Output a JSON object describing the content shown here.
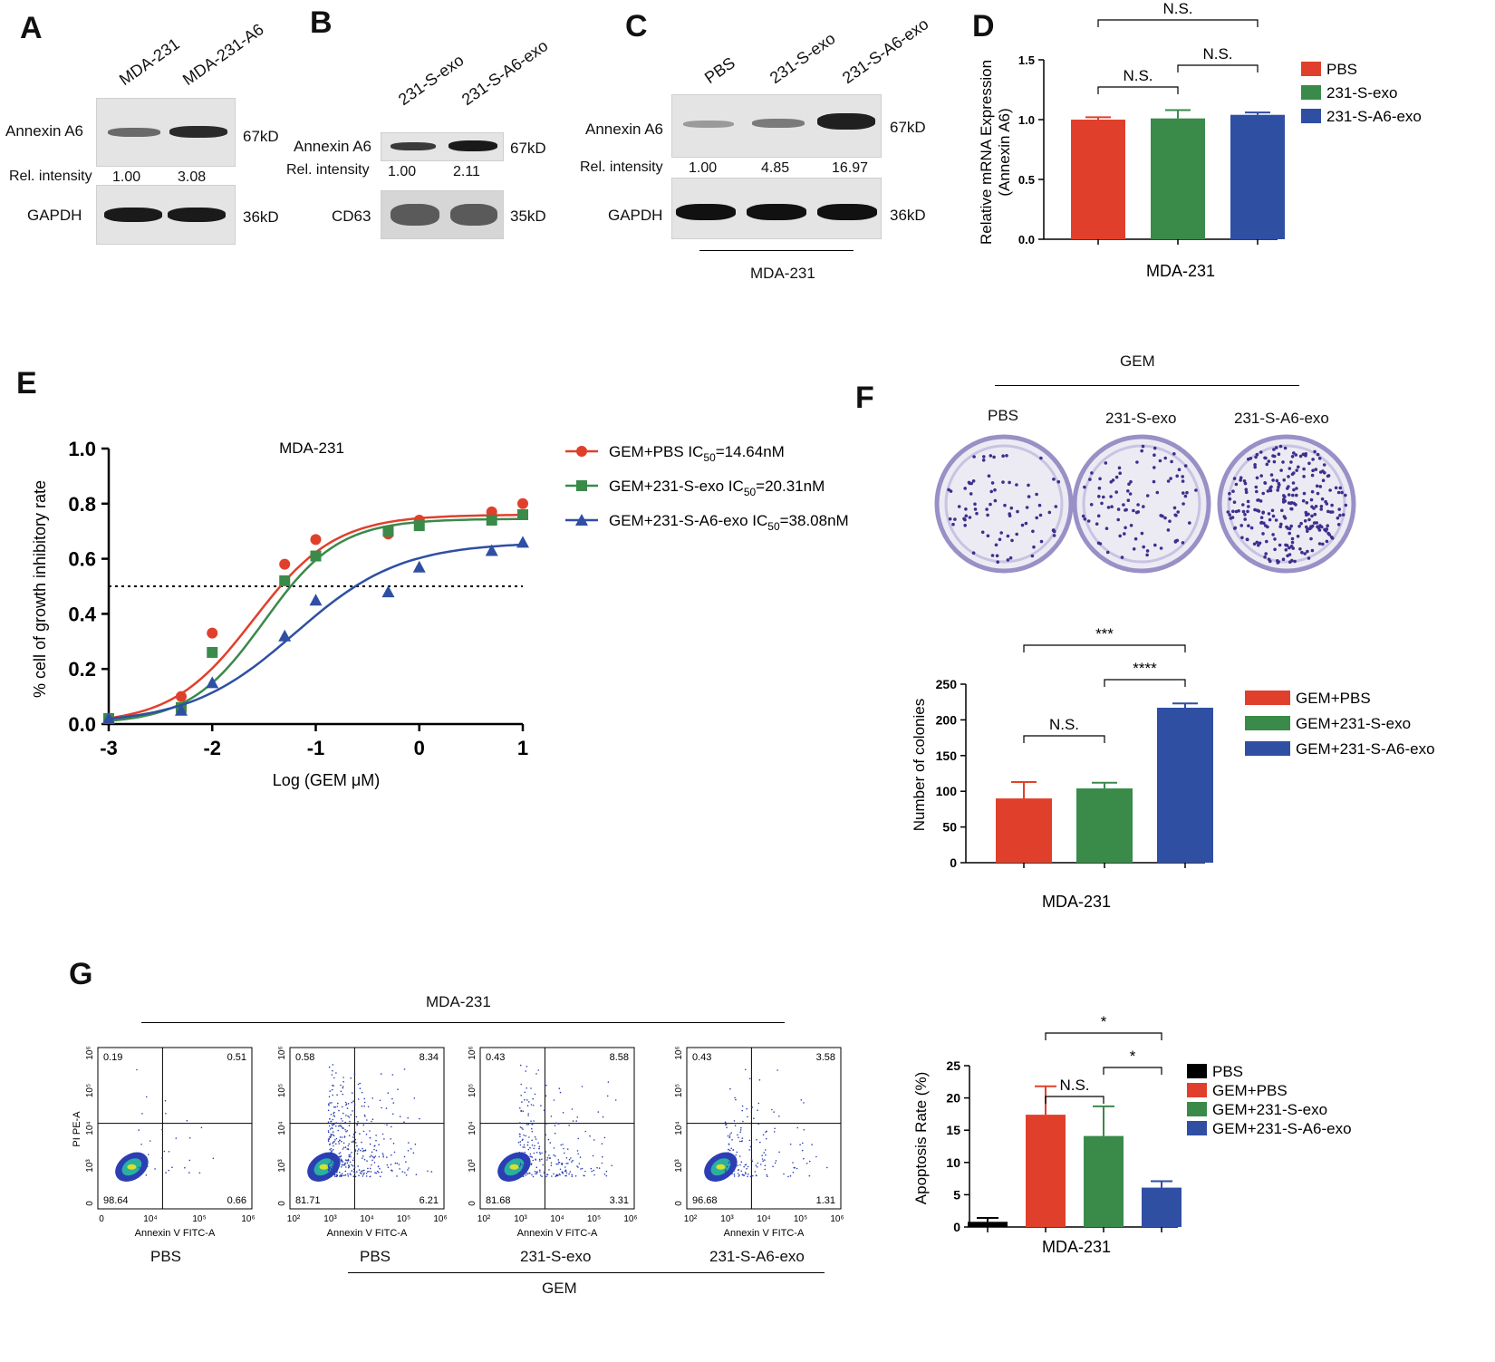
{
  "panels": {
    "A": "A",
    "B": "B",
    "C": "C",
    "D": "D",
    "E": "E",
    "F": "F",
    "G": "G"
  },
  "colors": {
    "red": "#e0402b",
    "green": "#3a8a4a",
    "blue": "#2f4fa3",
    "black": "#000000"
  },
  "panelA": {
    "lanes": [
      "MDA-231",
      "MDA-231-A6"
    ],
    "protein": "Annexin A6",
    "loading": "GAPDH",
    "size_top": "67kD",
    "size_bottom": "36kD",
    "rel_label": "Rel. intensity",
    "rel_values": [
      "1.00",
      "3.08"
    ]
  },
  "panelB": {
    "lanes": [
      "231-S-exo",
      "231-S-A6-exo"
    ],
    "protein": "Annexin A6",
    "loading": "CD63",
    "size_top": "67kD",
    "size_bottom": "35kD",
    "rel_label": "Rel. intensity",
    "rel_values": [
      "1.00",
      "2.11"
    ]
  },
  "panelC": {
    "lanes": [
      "PBS",
      "231-S-exo",
      "231-S-A6-exo"
    ],
    "protein": "Annexin A6",
    "loading": "GAPDH",
    "size_top": "67kD",
    "size_bottom": "36kD",
    "rel_label": "Rel. intensity",
    "rel_values": [
      "1.00",
      "4.85",
      "16.97"
    ],
    "cell_line": "MDA-231"
  },
  "panelF": {
    "treatment": "GEM",
    "dishes": [
      "PBS",
      "231-S-exo",
      "231-S-A6-exo"
    ]
  },
  "panelG": {
    "cell_line": "MDA-231",
    "treatment": "GEM",
    "x_axis": "Annexin V FITC-A",
    "y_axis": "PI PE-A",
    "plots": [
      {
        "label": "PBS",
        "q": [
          "0.19",
          "0.51",
          "98.64",
          "0.66"
        ]
      },
      {
        "label": "PBS",
        "q": [
          "0.58",
          "8.34",
          "81.71",
          "6.21"
        ]
      },
      {
        "label": "231-S-exo",
        "q": [
          "0.43",
          "8.58",
          "81.68",
          "3.31"
        ]
      },
      {
        "label": "231-S-A6-exo",
        "q": [
          "0.43",
          "3.58",
          "96.68",
          "1.31"
        ]
      }
    ],
    "x_ticks_first": [
      "0",
      "10⁴",
      "10⁵",
      "10⁶"
    ],
    "x_ticks_other": [
      "10²",
      "10³",
      "10⁴",
      "10⁵",
      "10⁶"
    ],
    "y_ticks": [
      "10⁶",
      "10⁵",
      "10⁴",
      "10³",
      "0"
    ]
  },
  "chart_data": [
    {
      "id": "D",
      "type": "bar",
      "categories": [
        "PBS",
        "231-S-exo",
        "231-S-A6-exo"
      ],
      "values": [
        1.0,
        1.01,
        1.04
      ],
      "errors": [
        0.02,
        0.07,
        0.02
      ],
      "colors": [
        "#e0402b",
        "#3a8a4a",
        "#2f4fa3"
      ],
      "xlabel": "MDA-231",
      "ylabel": "Relative mRNA Expression (Annexin A6)",
      "ylabel_lines": [
        "Relative mRNA Expression",
        "(Annexin A6)"
      ],
      "ylim": [
        0,
        1.5
      ],
      "yticks": [
        "0.0",
        "0.5",
        "1.0",
        "1.5"
      ],
      "legend": [
        "PBS",
        "231-S-exo",
        "231-S-A6-exo"
      ],
      "annotations": [
        {
          "from": 0,
          "to": 1,
          "text": "N.S."
        },
        {
          "from": 1,
          "to": 2,
          "text": "N.S."
        },
        {
          "from": 0,
          "to": 2,
          "text": "N.S."
        }
      ]
    },
    {
      "id": "E",
      "type": "line",
      "title": "MDA-231",
      "xlabel": "Log (GEM μM)",
      "ylabel": "% cell of growth inhibitory rate",
      "xlim": [
        -3,
        1
      ],
      "ylim": [
        0,
        1.0
      ],
      "xticks": [
        "-3",
        "-2",
        "-1",
        "0",
        "1"
      ],
      "yticks": [
        "0.0",
        "0.2",
        "0.4",
        "0.6",
        "0.8",
        "1.0"
      ],
      "threshold": 0.5,
      "series": [
        {
          "name": "GEM+PBS IC50=14.64nM",
          "label_prefix": "GEM+PBS IC",
          "label_sub": "50",
          "label_suffix": "=14.64nM",
          "color": "#e0402b",
          "marker": "circle",
          "x": [
            -3,
            -2.3,
            -2,
            -1.3,
            -1,
            -0.3,
            0,
            0.7,
            1
          ],
          "y": [
            0.02,
            0.1,
            0.33,
            0.58,
            0.67,
            0.69,
            0.74,
            0.77,
            0.8
          ],
          "fit": {
            "bottom": 0,
            "top": 0.76,
            "logic50": -1.6,
            "hill": 1.1
          }
        },
        {
          "name": "GEM+231-S-exo IC50=20.31nM",
          "label_prefix": "GEM+231-S-exo IC",
          "label_sub": "50",
          "label_suffix": "=20.31nM",
          "color": "#3a8a4a",
          "marker": "square",
          "x": [
            -3,
            -2.3,
            -2,
            -1.3,
            -1,
            -0.3,
            0,
            0.7,
            1
          ],
          "y": [
            0.02,
            0.06,
            0.26,
            0.52,
            0.61,
            0.7,
            0.72,
            0.74,
            0.76
          ],
          "fit": {
            "bottom": 0,
            "top": 0.745,
            "logic50": -1.5,
            "hill": 1.2
          }
        },
        {
          "name": "GEM+231-S-A6-exo IC50=38.08nM",
          "label_prefix": "GEM+231-S-A6-exo IC",
          "label_sub": "50",
          "label_suffix": "=38.08nM",
          "color": "#2f4fa3",
          "marker": "triangle",
          "x": [
            -3,
            -2.3,
            -2,
            -1.3,
            -1,
            -0.3,
            0,
            0.7,
            1
          ],
          "y": [
            0.02,
            0.05,
            0.15,
            0.32,
            0.45,
            0.48,
            0.57,
            0.63,
            0.66
          ],
          "fit": {
            "bottom": 0,
            "top": 0.66,
            "logic50": -1.2,
            "hill": 0.85
          }
        }
      ]
    },
    {
      "id": "F",
      "type": "bar",
      "categories": [
        "GEM+PBS",
        "GEM+231-S-exo",
        "GEM+231-S-A6-exo"
      ],
      "values": [
        90,
        104,
        217
      ],
      "errors": [
        23,
        8,
        6
      ],
      "colors": [
        "#e0402b",
        "#3a8a4a",
        "#2f4fa3"
      ],
      "xlabel": "MDA-231",
      "ylabel": "Number of colonies",
      "ylim": [
        0,
        250
      ],
      "yticks": [
        "0",
        "50",
        "100",
        "150",
        "200",
        "250"
      ],
      "legend": [
        "GEM+PBS",
        "GEM+231-S-exo",
        "GEM+231-S-A6-exo"
      ],
      "annotations": [
        {
          "from": 0,
          "to": 1,
          "text": "N.S."
        },
        {
          "from": 1,
          "to": 2,
          "text": "****"
        },
        {
          "from": 0,
          "to": 2,
          "text": "***"
        }
      ]
    },
    {
      "id": "G",
      "type": "bar",
      "categories": [
        "PBS",
        "GEM+PBS",
        "GEM+231-S-exo",
        "GEM+231-S-A6-exo"
      ],
      "values": [
        0.8,
        17.4,
        14.1,
        6.1
      ],
      "errors": [
        0.6,
        4.4,
        4.6,
        1.0
      ],
      "colors": [
        "#000000",
        "#e0402b",
        "#3a8a4a",
        "#2f4fa3"
      ],
      "xlabel": "MDA-231",
      "ylabel": "Apoptosis Rate (%)",
      "ylim": [
        0,
        25
      ],
      "yticks": [
        "0",
        "5",
        "10",
        "15",
        "20",
        "25"
      ],
      "legend": [
        "PBS",
        "GEM+PBS",
        "GEM+231-S-exo",
        "GEM+231-S-A6-exo"
      ],
      "annotations": [
        {
          "from": 1,
          "to": 2,
          "text": "N.S."
        },
        {
          "from": 2,
          "to": 3,
          "text": "*"
        },
        {
          "from": 1,
          "to": 3,
          "text": "*"
        }
      ]
    }
  ]
}
